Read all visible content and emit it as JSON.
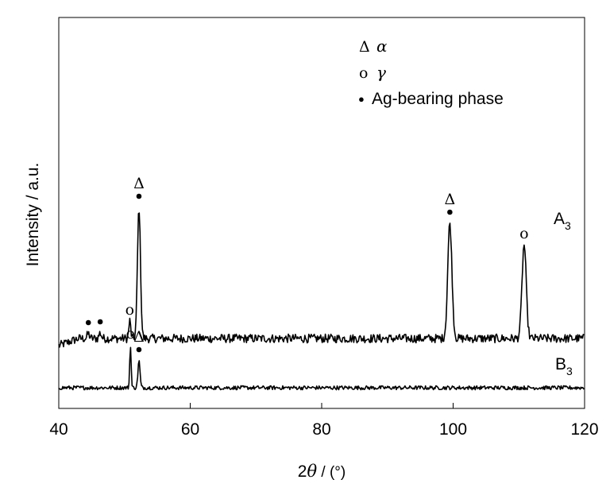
{
  "chart_data": {
    "type": "line",
    "title": "",
    "xlabel_prefix": "2",
    "xlabel_symbol": "θ",
    "xlabel_unit": " / (°)",
    "ylabel": "Intensity / a.u.",
    "xlim": [
      40,
      120
    ],
    "x_ticks": [
      40,
      60,
      80,
      100,
      120
    ],
    "y_ticks_shown": false,
    "grid": false,
    "legend": {
      "placement": "top-center",
      "entries": [
        {
          "marker": "Δ",
          "label": "α"
        },
        {
          "marker": "o",
          "label": "γ"
        },
        {
          "marker": "●",
          "label": "Ag-bearing phase"
        }
      ]
    },
    "series": [
      {
        "name": "A",
        "subscript": "3",
        "baseline": 0.62,
        "noise": 0.11,
        "peaks": [
          {
            "x": 44.5,
            "h": 0.06,
            "w": 0.25
          },
          {
            "x": 46.3,
            "h": 0.07,
            "w": 0.25
          },
          {
            "x": 50.8,
            "h": 0.22,
            "w": 0.2
          },
          {
            "x": 52.2,
            "h": 1.65,
            "w": 0.32
          },
          {
            "x": 99.5,
            "h": 1.45,
            "w": 0.45
          },
          {
            "x": 110.8,
            "h": 1.18,
            "w": 0.45
          }
        ]
      },
      {
        "name": "B",
        "subscript": "3",
        "baseline": 0.0,
        "noise": 0.05,
        "peaks": [
          {
            "x": 50.9,
            "h": 0.54,
            "w": 0.15
          },
          {
            "x": 52.2,
            "h": 0.34,
            "w": 0.22
          }
        ]
      }
    ],
    "annotations": [
      {
        "series": 0,
        "x": 44.5,
        "dot": true,
        "symbol": ""
      },
      {
        "series": 0,
        "x": 46.3,
        "dot": true,
        "symbol": ""
      },
      {
        "series": 0,
        "x": 50.8,
        "dot": false,
        "symbol": "o"
      },
      {
        "series": 0,
        "x": 52.2,
        "dot": true,
        "symbol": "Δ"
      },
      {
        "series": 0,
        "x": 99.5,
        "dot": true,
        "symbol": "Δ"
      },
      {
        "series": 0,
        "x": 110.8,
        "dot": false,
        "symbol": "o"
      },
      {
        "series": 1,
        "x": 50.9,
        "dot": false,
        "symbol": "o"
      },
      {
        "series": 1,
        "x": 52.2,
        "dot": true,
        "symbol": "Δ"
      }
    ]
  }
}
